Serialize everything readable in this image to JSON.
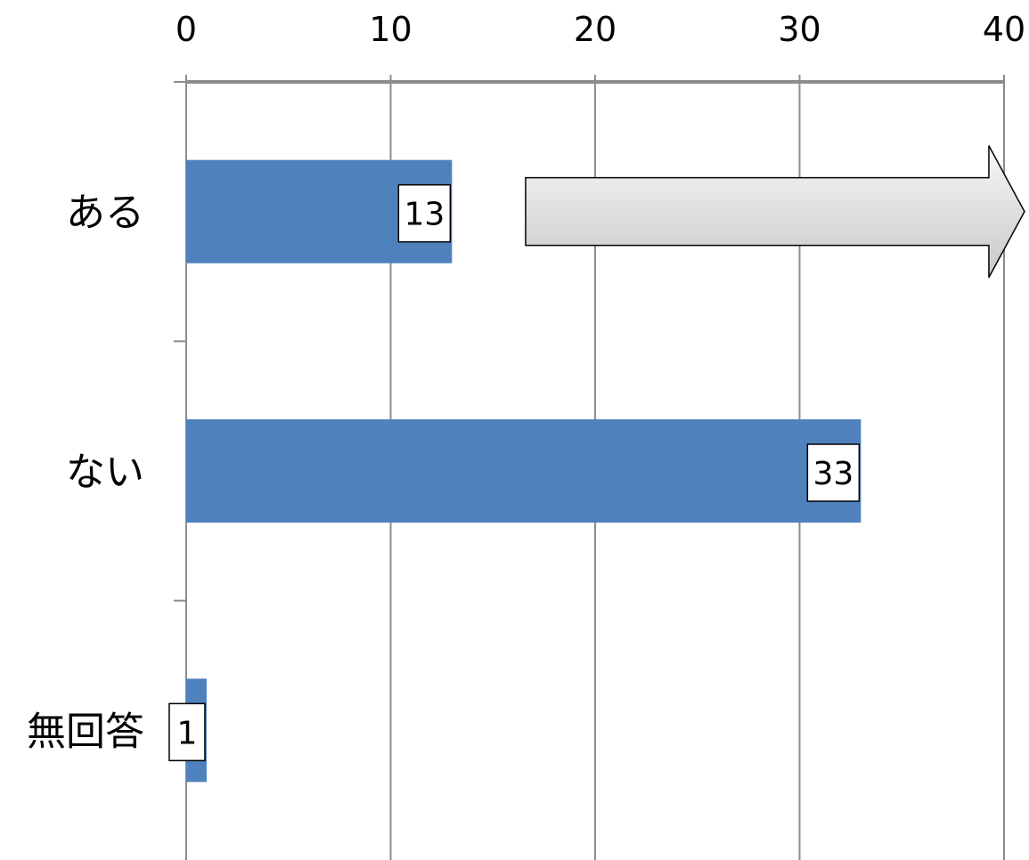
{
  "chart_data": {
    "type": "bar",
    "orientation": "horizontal",
    "categories": [
      "ある",
      "ない",
      "無回答"
    ],
    "values": [
      13,
      33,
      1
    ],
    "data_labels": [
      "13",
      "33",
      "1"
    ],
    "xlim": [
      0,
      40
    ],
    "x_ticks": [
      "0",
      "10",
      "20",
      "30",
      "40"
    ],
    "x_axis_position": "top",
    "grid": true,
    "legend": "none",
    "title": "",
    "xlabel": "",
    "ylabel": "",
    "colors": {
      "bar": "#4F81BD",
      "grid": "#8C8C8C",
      "axis": "#8C8C8C",
      "arrow_fill_top": "#F7F7F7",
      "arrow_fill_bottom": "#C8C8C8",
      "arrow_stroke": "#000000"
    },
    "annotation": {
      "shape": "arrow-right",
      "row": 0,
      "x_start": 16.6,
      "x_end": 41
    }
  }
}
